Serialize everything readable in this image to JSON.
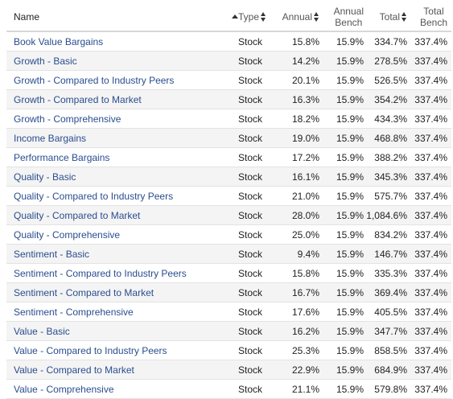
{
  "table": {
    "columns": {
      "name": "Name",
      "type": "Type",
      "annual": "Annual",
      "annual_bench_line1": "Annual",
      "annual_bench_line2": "Bench",
      "total": "Total",
      "total_bench_line1": "Total",
      "total_bench_line2": "Bench"
    },
    "rows": [
      {
        "name": "Book Value Bargains",
        "type": "Stock",
        "annual": "15.8%",
        "bench": "15.9%",
        "total": "334.7%",
        "total_bench": "337.4%"
      },
      {
        "name": "Growth - Basic",
        "type": "Stock",
        "annual": "14.2%",
        "bench": "15.9%",
        "total": "278.5%",
        "total_bench": "337.4%"
      },
      {
        "name": "Growth - Compared to Industry Peers",
        "type": "Stock",
        "annual": "20.1%",
        "bench": "15.9%",
        "total": "526.5%",
        "total_bench": "337.4%"
      },
      {
        "name": "Growth - Compared to Market",
        "type": "Stock",
        "annual": "16.3%",
        "bench": "15.9%",
        "total": "354.2%",
        "total_bench": "337.4%"
      },
      {
        "name": "Growth - Comprehensive",
        "type": "Stock",
        "annual": "18.2%",
        "bench": "15.9%",
        "total": "434.3%",
        "total_bench": "337.4%"
      },
      {
        "name": "Income Bargains",
        "type": "Stock",
        "annual": "19.0%",
        "bench": "15.9%",
        "total": "468.8%",
        "total_bench": "337.4%"
      },
      {
        "name": "Performance Bargains",
        "type": "Stock",
        "annual": "17.2%",
        "bench": "15.9%",
        "total": "388.2%",
        "total_bench": "337.4%"
      },
      {
        "name": "Quality - Basic",
        "type": "Stock",
        "annual": "16.1%",
        "bench": "15.9%",
        "total": "345.3%",
        "total_bench": "337.4%"
      },
      {
        "name": "Quality - Compared to Industry Peers",
        "type": "Stock",
        "annual": "21.0%",
        "bench": "15.9%",
        "total": "575.7%",
        "total_bench": "337.4%"
      },
      {
        "name": "Quality - Compared to Market",
        "type": "Stock",
        "annual": "28.0%",
        "bench": "15.9%",
        "total": "1,084.6%",
        "total_bench": "337.4%"
      },
      {
        "name": "Quality - Comprehensive",
        "type": "Stock",
        "annual": "25.0%",
        "bench": "15.9%",
        "total": "834.2%",
        "total_bench": "337.4%"
      },
      {
        "name": "Sentiment - Basic",
        "type": "Stock",
        "annual": "9.4%",
        "bench": "15.9%",
        "total": "146.7%",
        "total_bench": "337.4%"
      },
      {
        "name": "Sentiment - Compared to Industry Peers",
        "type": "Stock",
        "annual": "15.8%",
        "bench": "15.9%",
        "total": "335.3%",
        "total_bench": "337.4%"
      },
      {
        "name": "Sentiment - Compared to Market",
        "type": "Stock",
        "annual": "16.7%",
        "bench": "15.9%",
        "total": "369.4%",
        "total_bench": "337.4%"
      },
      {
        "name": "Sentiment - Comprehensive",
        "type": "Stock",
        "annual": "17.6%",
        "bench": "15.9%",
        "total": "405.5%",
        "total_bench": "337.4%"
      },
      {
        "name": "Value - Basic",
        "type": "Stock",
        "annual": "16.2%",
        "bench": "15.9%",
        "total": "347.7%",
        "total_bench": "337.4%"
      },
      {
        "name": "Value - Compared to Industry Peers",
        "type": "Stock",
        "annual": "25.3%",
        "bench": "15.9%",
        "total": "858.5%",
        "total_bench": "337.4%"
      },
      {
        "name": "Value - Compared to Market",
        "type": "Stock",
        "annual": "22.9%",
        "bench": "15.9%",
        "total": "684.9%",
        "total_bench": "337.4%"
      },
      {
        "name": "Value - Comprehensive",
        "type": "Stock",
        "annual": "21.1%",
        "bench": "15.9%",
        "total": "579.8%",
        "total_bench": "337.4%"
      }
    ],
    "colors": {
      "link": "#2a4d8f",
      "stripe": "#f4f4f4"
    },
    "icons": {
      "name_sort": "sort-up-icon",
      "column_sort": "sort-icon"
    }
  }
}
